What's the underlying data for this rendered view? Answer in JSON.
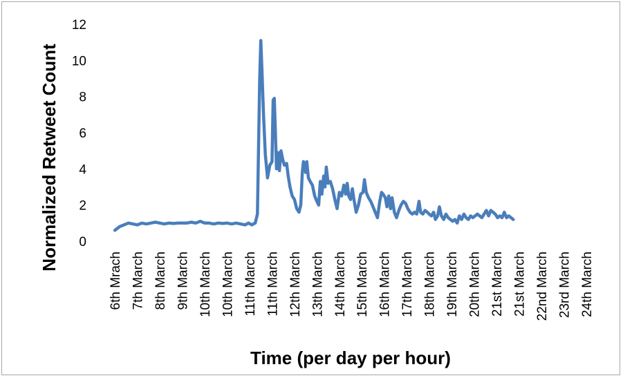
{
  "chart_data": {
    "type": "line",
    "title": "",
    "xlabel": "Time (per day per hour)",
    "ylabel": "Normalized Retweet Count",
    "ylim": [
      0,
      12
    ],
    "yticks": [
      0,
      2,
      4,
      6,
      8,
      10,
      12
    ],
    "grid": false,
    "legend": "none",
    "line_color": "#4a7ebb",
    "categories": [
      "6th Mrach",
      "7th March",
      "8th March",
      "9th March",
      "10th March",
      "10th March",
      "11th March",
      "11th March",
      "12th March",
      "13th March",
      "14th March",
      "15th March",
      "16th March",
      "17th March",
      "18th March",
      "19th March",
      "20th March",
      "21st March",
      "21st March",
      "22nd March",
      "23rd March",
      "24th March"
    ],
    "series": [
      {
        "values": [
          [
            0.0,
            0.6
          ],
          [
            0.2,
            0.8
          ],
          [
            0.4,
            0.9
          ],
          [
            0.6,
            1.0
          ],
          [
            0.8,
            0.95
          ],
          [
            1.0,
            0.9
          ],
          [
            1.2,
            1.0
          ],
          [
            1.4,
            0.95
          ],
          [
            1.6,
            1.0
          ],
          [
            1.8,
            1.05
          ],
          [
            2.0,
            1.0
          ],
          [
            2.2,
            0.95
          ],
          [
            2.4,
            1.0
          ],
          [
            2.6,
            0.98
          ],
          [
            2.8,
            1.0
          ],
          [
            3.0,
            1.0
          ],
          [
            3.2,
            1.0
          ],
          [
            3.4,
            1.05
          ],
          [
            3.6,
            1.0
          ],
          [
            3.8,
            1.1
          ],
          [
            4.0,
            1.0
          ],
          [
            4.2,
            1.0
          ],
          [
            4.4,
            0.95
          ],
          [
            4.6,
            1.0
          ],
          [
            4.8,
            0.98
          ],
          [
            5.0,
            1.0
          ],
          [
            5.2,
            0.95
          ],
          [
            5.4,
            1.0
          ],
          [
            5.6,
            0.95
          ],
          [
            5.8,
            0.9
          ],
          [
            5.95,
            1.0
          ],
          [
            6.1,
            0.9
          ],
          [
            6.25,
            1.0
          ],
          [
            6.35,
            1.5
          ],
          [
            6.45,
            9.0
          ],
          [
            6.5,
            11.1
          ],
          [
            6.55,
            9.5
          ],
          [
            6.62,
            7.0
          ],
          [
            6.7,
            4.8
          ],
          [
            6.8,
            3.5
          ],
          [
            6.9,
            4.2
          ],
          [
            7.0,
            4.4
          ],
          [
            7.05,
            7.8
          ],
          [
            7.1,
            7.9
          ],
          [
            7.15,
            6.0
          ],
          [
            7.2,
            4.0
          ],
          [
            7.28,
            4.9
          ],
          [
            7.33,
            3.9
          ],
          [
            7.4,
            5.0
          ],
          [
            7.48,
            4.5
          ],
          [
            7.55,
            4.2
          ],
          [
            7.65,
            4.3
          ],
          [
            7.72,
            3.6
          ],
          [
            7.8,
            3.0
          ],
          [
            7.9,
            2.5
          ],
          [
            8.0,
            2.3
          ],
          [
            8.1,
            1.8
          ],
          [
            8.2,
            1.6
          ],
          [
            8.28,
            2.0
          ],
          [
            8.35,
            3.8
          ],
          [
            8.4,
            4.4
          ],
          [
            8.5,
            3.8
          ],
          [
            8.55,
            4.4
          ],
          [
            8.62,
            3.5
          ],
          [
            8.7,
            3.3
          ],
          [
            8.8,
            3.1
          ],
          [
            8.9,
            2.5
          ],
          [
            9.0,
            2.2
          ],
          [
            9.08,
            2.0
          ],
          [
            9.15,
            3.3
          ],
          [
            9.22,
            2.6
          ],
          [
            9.3,
            3.6
          ],
          [
            9.36,
            3.0
          ],
          [
            9.42,
            4.1
          ],
          [
            9.5,
            3.2
          ],
          [
            9.6,
            3.3
          ],
          [
            9.7,
            2.9
          ],
          [
            9.8,
            2.3
          ],
          [
            9.9,
            1.8
          ],
          [
            10.0,
            2.7
          ],
          [
            10.1,
            2.5
          ],
          [
            10.2,
            3.1
          ],
          [
            10.28,
            2.6
          ],
          [
            10.35,
            3.2
          ],
          [
            10.42,
            2.5
          ],
          [
            10.5,
            2.3
          ],
          [
            10.58,
            2.9
          ],
          [
            10.65,
            2.3
          ],
          [
            10.75,
            1.6
          ],
          [
            10.85,
            2.0
          ],
          [
            10.95,
            2.6
          ],
          [
            11.05,
            2.7
          ],
          [
            11.12,
            3.4
          ],
          [
            11.2,
            2.7
          ],
          [
            11.3,
            2.4
          ],
          [
            11.4,
            2.2
          ],
          [
            11.5,
            1.9
          ],
          [
            11.6,
            1.6
          ],
          [
            11.7,
            1.3
          ],
          [
            11.8,
            2.2
          ],
          [
            11.88,
            2.7
          ],
          [
            11.95,
            2.6
          ],
          [
            12.05,
            2.4
          ],
          [
            12.12,
            1.9
          ],
          [
            12.2,
            2.5
          ],
          [
            12.28,
            1.8
          ],
          [
            12.35,
            2.4
          ],
          [
            12.45,
            1.6
          ],
          [
            12.55,
            1.3
          ],
          [
            12.65,
            1.7
          ],
          [
            12.75,
            2.0
          ],
          [
            12.85,
            2.2
          ],
          [
            12.95,
            2.1
          ],
          [
            13.05,
            1.8
          ],
          [
            13.15,
            1.6
          ],
          [
            13.25,
            1.5
          ],
          [
            13.35,
            1.6
          ],
          [
            13.45,
            1.5
          ],
          [
            13.55,
            2.2
          ],
          [
            13.62,
            1.6
          ],
          [
            13.72,
            1.5
          ],
          [
            13.82,
            1.7
          ],
          [
            13.92,
            1.6
          ],
          [
            14.0,
            1.5
          ],
          [
            14.1,
            1.4
          ],
          [
            14.2,
            1.6
          ],
          [
            14.28,
            1.2
          ],
          [
            14.38,
            1.4
          ],
          [
            14.46,
            1.9
          ],
          [
            14.55,
            1.4
          ],
          [
            14.65,
            1.2
          ],
          [
            14.75,
            1.5
          ],
          [
            14.85,
            1.3
          ],
          [
            14.95,
            1.2
          ],
          [
            15.05,
            1.1
          ],
          [
            15.15,
            1.2
          ],
          [
            15.25,
            1.0
          ],
          [
            15.35,
            1.4
          ],
          [
            15.45,
            1.2
          ],
          [
            15.55,
            1.5
          ],
          [
            15.65,
            1.3
          ],
          [
            15.75,
            1.2
          ],
          [
            15.85,
            1.4
          ],
          [
            15.95,
            1.3
          ],
          [
            16.05,
            1.4
          ],
          [
            16.15,
            1.5
          ],
          [
            16.25,
            1.4
          ],
          [
            16.35,
            1.3
          ],
          [
            16.45,
            1.5
          ],
          [
            16.55,
            1.7
          ],
          [
            16.65,
            1.4
          ],
          [
            16.75,
            1.7
          ],
          [
            16.85,
            1.6
          ],
          [
            16.95,
            1.5
          ],
          [
            17.05,
            1.3
          ],
          [
            17.15,
            1.4
          ],
          [
            17.25,
            1.3
          ],
          [
            17.35,
            1.6
          ],
          [
            17.45,
            1.3
          ],
          [
            17.55,
            1.4
          ],
          [
            17.65,
            1.3
          ],
          [
            17.75,
            1.2
          ]
        ]
      }
    ]
  }
}
